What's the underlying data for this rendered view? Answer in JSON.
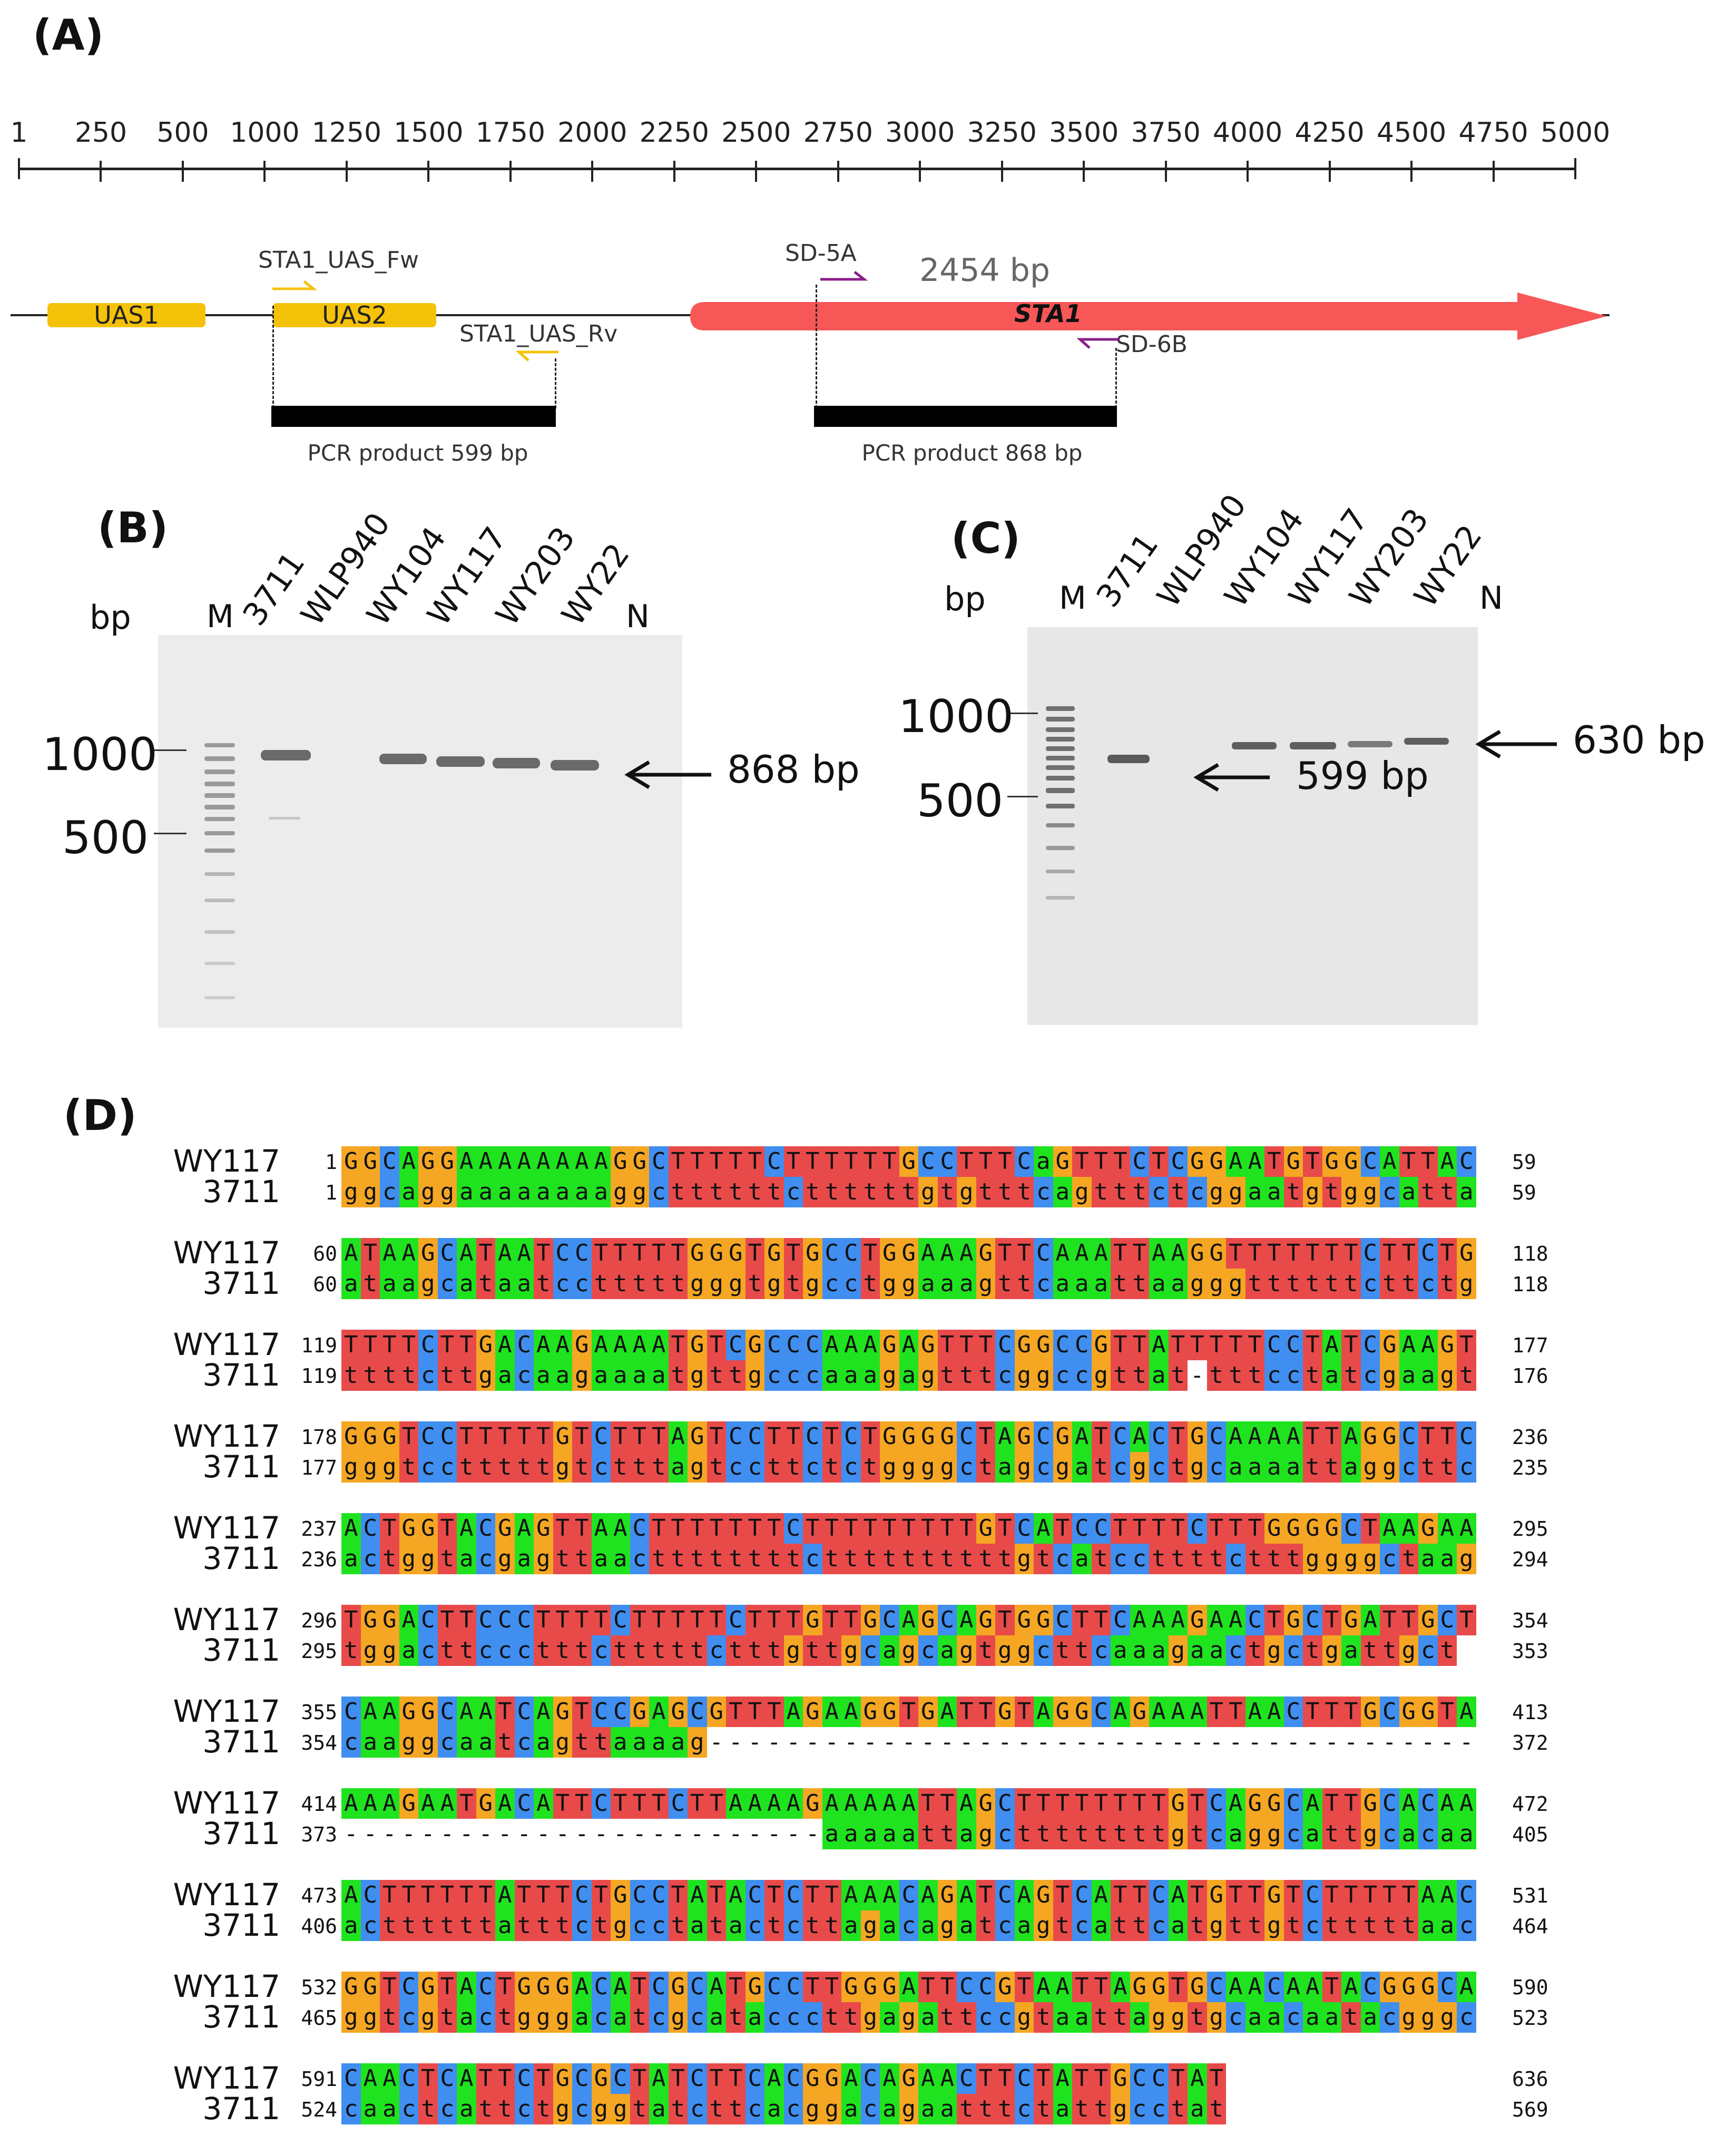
{
  "panels": {
    "a": "(A)",
    "b": "(B)",
    "c": "(C)",
    "d": "(D)"
  },
  "ruler": {
    "ticks": [
      "1",
      "250",
      "500",
      "1000",
      "1250",
      "1500",
      "1750",
      "2000",
      "2250",
      "2500",
      "2750",
      "3000",
      "3250",
      "3500",
      "3750",
      "4000",
      "4250",
      "4500",
      "4750",
      "5000"
    ]
  },
  "map": {
    "features": {
      "uas1": "UAS1",
      "uas2": "UAS2",
      "sta1": "STA1",
      "sta1_size": "2454 bp"
    },
    "primers": {
      "uas_fw": "STA1_UAS_Fw",
      "uas_rv": "STA1_UAS_Rv",
      "sd5a": "SD-5A",
      "sd6b": "SD-6B"
    },
    "pcr": {
      "left": "PCR product 599 bp",
      "right": "PCR product 868 bp"
    },
    "colors": {
      "uas": "#f5c20a",
      "sta1": "#f75756",
      "sd_primer": "#8a1f8a"
    }
  },
  "gel_b": {
    "bp": "bp",
    "lanes": [
      "M",
      "3711",
      "WLP940",
      "WY104",
      "WY117",
      "WY203",
      "WY22",
      "N"
    ],
    "ladder": [
      "1000",
      "500"
    ],
    "arrow": "868 bp"
  },
  "gel_c": {
    "bp": "bp",
    "lanes": [
      "M",
      "3711",
      "WLP940",
      "WY104",
      "WY117",
      "WY203",
      "WY22",
      "N"
    ],
    "ladder": [
      "1000",
      "500"
    ],
    "arrow_left": "599 bp",
    "arrow_right": "630 bp"
  },
  "alignment": {
    "names": [
      "WY117",
      "3711"
    ],
    "colors": {
      "A": "#1fe31f",
      "C": "#3f8ef0",
      "G": "#f5a623",
      "T": "#e84a4a"
    },
    "blocks": [
      {
        "top": "GGCAGGAAAAAAAAGGCTTTTTCTTTTTTGCCTTTCaGTTTCTCGGAATGTGGCATTAC",
        "bot": "ggcaggaaaaaaaaggcttttttcttttttgtgtttcagtttctcggaatgtggcattac",
        "n": [
          "1",
          "59",
          "1",
          "59"
        ]
      },
      {
        "top": "ATAAGCATAATCCTTTTTGGGTGTGCCTGGAAAGTTCAAATTAAGGTTTTTTTCTTCTG",
        "bot": "ataagcataatcctttttgggtgtgcctggaaagttcaaattaagggttttttcttctg",
        "n": [
          "60",
          "118",
          "60",
          "118"
        ]
      },
      {
        "top": "TTTTCTTGACAAGAAAATGTCGCCCAAAGAGTTTCGGCCGTTATTTTTCCTATCGAAGT",
        "bot": "ttttcttgacaagaaaatgttgcccaaagagtttcggccgttat-tttcctatcgaagt",
        "n": [
          "119",
          "177",
          "119",
          "176"
        ]
      },
      {
        "top": "GGGTCCTTTTTGTCTTTAGTCCTTCTCTGGGGCTAGCGATCACTGCAAAATTAGGCTTC",
        "bot": "gggtcctttttgtctttagtccttctctggggctagcgatcgctgcaaaattaggcttc",
        "n": [
          "178",
          "236",
          "177",
          "235"
        ]
      },
      {
        "top": "ACTGGTACGAGTTAACTTTTTTTCTTTTTTTTTGTCATCCTTTTCTTTGGGGCTAAGAA",
        "bot": "actggtacgagttaacttttttttcttttttttttgtcatccttttctttggggctaagaa",
        "n": [
          "237",
          "295",
          "236",
          "294"
        ]
      },
      {
        "top": "TGGACTTCCCTTTTCTTTTTCTTTGTTGCAGCAGTGGCTTCAAAGAACTGCTGATTGCT",
        "bot": "tggacttccctttctttttctttgttgcagcagtggcttcaaagaactgctgattgct",
        "n": [
          "296",
          "354",
          "295",
          "353"
        ]
      },
      {
        "top": "CAAGGCAATCAGTCCGAGCGTTTAGAAGGTGATTGTAGGCAGAAATTAACTTTGCGGTA",
        "bot": "caaggcaatcagttaaaag----------------------------------------",
        "n": [
          "355",
          "413",
          "354",
          "372"
        ]
      },
      {
        "top": "AAAGAATGACATTCTTTCTTAAAAGAAAAATTAGCTTTTTTTTGTCAGGCATTGCACAA",
        "bot": "-------------------------aaaaattagcttttttttgtcaggcattgcacaa",
        "n": [
          "414",
          "472",
          "373",
          "405"
        ]
      },
      {
        "top": "ACTTTTTTATTTCTGCCTATACTCTTAAACAGATCAGTCATTCATGTTGTCTTTTTAAC",
        "bot": "acttttttatttctgcctatactcttagacagatcagtcattcatgttgtctttttaac",
        "n": [
          "473",
          "531",
          "406",
          "464"
        ]
      },
      {
        "top": "GGTCGTACTGGGACATCGCATGCCTTGGGATTCCGTAATTAGGTGCAACAATACGGGCA",
        "bot": "ggtcgtactgggacatcgcatacccttgagattccgtaattaggtgcaacaatacgggca",
        "n": [
          "532",
          "590",
          "465",
          "523"
        ]
      },
      {
        "top": "CAACTCATTCTGCGCTATCTTCACGGACAGAACTTCTATTGCCTAT",
        "bot": "caactcattctgcggtatcttcacggacagaatttctattgcctat",
        "n": [
          "591",
          "636",
          "524",
          "569"
        ]
      }
    ]
  }
}
